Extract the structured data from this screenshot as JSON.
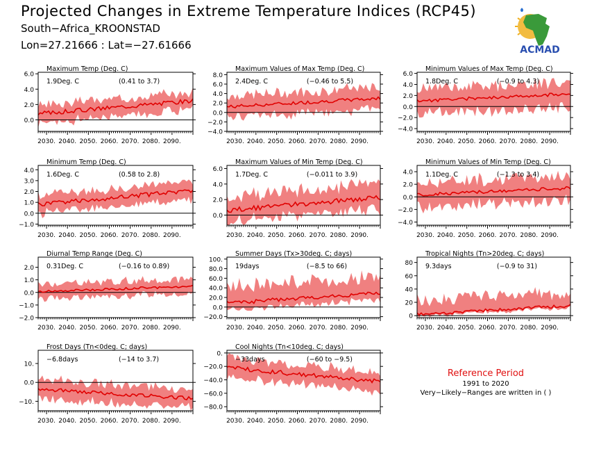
{
  "header": {
    "title": "Projected Changes in Extreme Temperature Indices (RCP45)",
    "location": "South−Africa_KROONSTAD",
    "coords": "Lon=27.21666 : Lat=−27.61666"
  },
  "logo": {
    "text": "ACMAD",
    "colors": {
      "africa": "#3a9a3a",
      "sun": "#f0b020",
      "text": "#2a4fb0",
      "drop": "#2a6fd0"
    }
  },
  "reference": {
    "title": "Reference Period",
    "years": "1991 to 2020",
    "note": "Very−Likely−Ranges are written in ( )"
  },
  "style": {
    "band_color": "#f08080",
    "line_color": "#e00000",
    "zero_color": "#000000"
  },
  "xticks": [
    "2030.",
    "2040.",
    "2050.",
    "2060.",
    "2070.",
    "2080.",
    "2090."
  ],
  "chart_data": [
    {
      "type": "area",
      "title": "Maximum Temp (Deg. C)",
      "change": "1.9Deg. C",
      "range": "(0.41 to 3.7)",
      "xlim": [
        2026,
        2100
      ],
      "ylim": [
        -1.5,
        6.2
      ],
      "yticks": [
        "6.0",
        "4.0",
        "2.0",
        "0.0"
      ],
      "ytick_values": [
        6,
        4,
        2,
        0
      ],
      "start": 0.8,
      "end": 2.5,
      "lo_off": 1.2,
      "hi_off": 1.1,
      "seed": 3
    },
    {
      "type": "area",
      "title": "Maximum Values of Max Temp (Deg. C)",
      "change": "2.4Deg. C",
      "range": "(−0.46 to 5.5)",
      "xlim": [
        2026,
        2100
      ],
      "ylim": [
        -4,
        8.5
      ],
      "yticks": [
        "8.0",
        "6.0",
        "4.0",
        "2.0",
        "0.0",
        "−2.0",
        "−4.0"
      ],
      "ytick_values": [
        8,
        6,
        4,
        2,
        0,
        -2,
        -4
      ],
      "start": 1.2,
      "end": 3.0,
      "lo_off": 2.2,
      "hi_off": 2.3,
      "seed": 7
    },
    {
      "type": "area",
      "title": "Minimum Values of Max Temp (Deg. C)",
      "change": "1.8Deg. C",
      "range": "(−0.9 to 4.3)",
      "xlim": [
        2026,
        2100
      ],
      "ylim": [
        -4.5,
        6.2
      ],
      "yticks": [
        "6.0",
        "4.0",
        "2.0",
        "0.0",
        "−2.0",
        "−4.0"
      ],
      "ytick_values": [
        6,
        4,
        2,
        0,
        -2,
        -4
      ],
      "start": 1.0,
      "end": 2.3,
      "lo_off": 2.3,
      "hi_off": 2.2,
      "seed": 11
    },
    {
      "type": "area",
      "title": "Minimum Temp (Deg. C)",
      "change": "1.6Deg. C",
      "range": "(0.58 to 2.8)",
      "xlim": [
        2026,
        2100
      ],
      "ylim": [
        -1.1,
        4.4
      ],
      "yticks": [
        "4.0",
        "3.0",
        "2.0",
        "1.0",
        "0.0",
        "−1.0"
      ],
      "ytick_values": [
        4,
        3,
        2,
        1,
        0,
        -1
      ],
      "start": 0.8,
      "end": 2.1,
      "lo_off": 0.8,
      "hi_off": 0.8,
      "seed": 5
    },
    {
      "type": "area",
      "title": "Maximum Values of Min Temp (Deg. C)",
      "change": "1.7Deg. C",
      "range": "(−0.011 to 3.9)",
      "xlim": [
        2026,
        2100
      ],
      "ylim": [
        -1.3,
        6.4
      ],
      "yticks": [
        "6.0",
        "4.0",
        "2.0",
        "0.0"
      ],
      "ytick_values": [
        6,
        4,
        2,
        0
      ],
      "start": 0.6,
      "end": 2.3,
      "lo_off": 1.5,
      "hi_off": 1.8,
      "seed": 13
    },
    {
      "type": "area",
      "title": "Minimum Values of Min Temp (Deg. C)",
      "change": "1.1Deg. C",
      "range": "(−1.3 to 3.4)",
      "xlim": [
        2026,
        2100
      ],
      "ylim": [
        -4.5,
        5.0
      ],
      "yticks": [
        "4.0",
        "2.0",
        "0.0",
        "−2.0",
        "−4.0"
      ],
      "ytick_values": [
        4,
        2,
        0,
        -2,
        -4
      ],
      "start": 0.3,
      "end": 1.4,
      "lo_off": 2.0,
      "hi_off": 2.0,
      "seed": 17
    },
    {
      "type": "area",
      "title": "Diurnal Temp Range (Deg. C)",
      "change": "0.31Deg. C",
      "range": "(−0.16 to 0.89)",
      "xlim": [
        2026,
        2100
      ],
      "ylim": [
        -2.0,
        2.8
      ],
      "yticks": [
        "2.0",
        "1.0",
        "0.0",
        "−1.0",
        "−2.0"
      ],
      "ytick_values": [
        2,
        1,
        0,
        -1,
        -2
      ],
      "start": 0.05,
      "end": 0.5,
      "lo_off": 0.55,
      "hi_off": 0.6,
      "seed": 19
    },
    {
      "type": "area",
      "title": "Summer Days (Tx>30deg. C; days)",
      "change": "19days",
      "range": "(−8.5 to 66)",
      "xlim": [
        2026,
        2100
      ],
      "ylim": [
        -22,
        104
      ],
      "yticks": [
        "100.",
        "80.0",
        "60.0",
        "40.0",
        "20.0",
        "0.0",
        "−20.0"
      ],
      "ytick_values": [
        100,
        80,
        60,
        40,
        20,
        0,
        -20
      ],
      "start": 8,
      "end": 30,
      "lo_off": 14,
      "hi_off": 34,
      "seed": 23
    },
    {
      "type": "area",
      "title": "Tropical Nights (Tn>20deg. C; days)",
      "change": "9.3days",
      "range": "(−0.9 to 31)",
      "xlim": [
        2026,
        2100
      ],
      "ylim": [
        -3,
        88
      ],
      "yticks": [
        "80",
        "60",
        "40",
        "20",
        "0"
      ],
      "ytick_values": [
        80,
        60,
        40,
        20,
        0
      ],
      "start": 2,
      "end": 15,
      "lo_off": 3,
      "hi_off": 20,
      "seed": 29
    },
    {
      "type": "area",
      "title": "Frost Days (Tn<0deg. C; days)",
      "change": "−6.8days",
      "range": "(−14 to 3.7)",
      "xlim": [
        2026,
        2100
      ],
      "ylim": [
        -15,
        17
      ],
      "yticks": [
        "10.",
        "0.0",
        "−10."
      ],
      "ytick_values": [
        10,
        0,
        -10
      ],
      "start": -3.5,
      "end": -8.5,
      "lo_off": 5,
      "hi_off": 5,
      "seed": 31
    },
    {
      "type": "area",
      "title": "Cool Nights (Tn<10deg. C; days)",
      "change": "−33days",
      "range": "(−60 to −9.5)",
      "xlim": [
        2026,
        2100
      ],
      "ylim": [
        -86,
        4
      ],
      "yticks": [
        "0.",
        "−20.0",
        "−40.0",
        "−60.0",
        "−80.0"
      ],
      "ytick_values": [
        0,
        -20,
        -40,
        -60,
        -80
      ],
      "start": -22,
      "end": -42,
      "lo_off": 14,
      "hi_off": 14,
      "seed": 37
    }
  ]
}
